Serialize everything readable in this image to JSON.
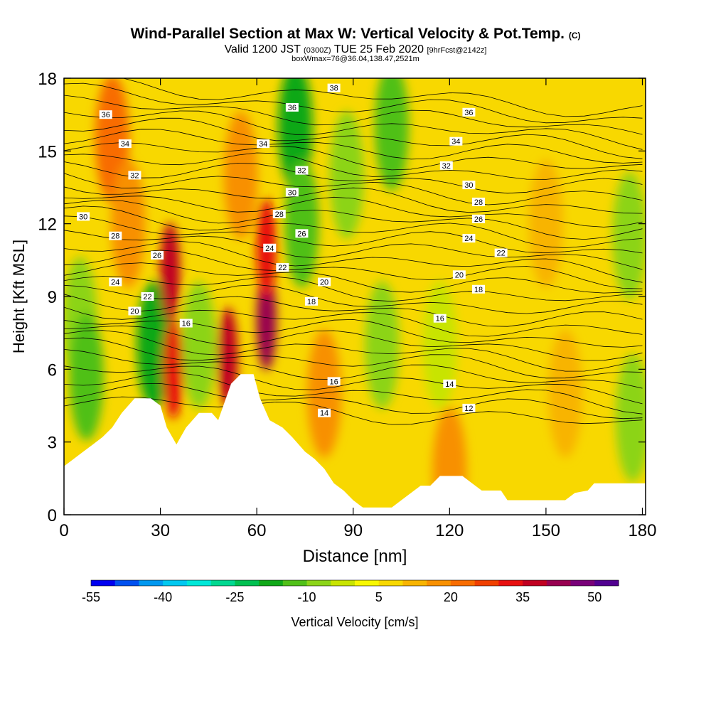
{
  "title": {
    "main": "Wind-Parallel Section at Max W: Vertical Velocity & Pot.Temp.",
    "copyright": "(C)",
    "valid_prefix": "Valid 1200 JST",
    "valid_z": "(0300Z)",
    "valid_date": "TUE 25 Feb 2020",
    "forecast": "[9hrFcst@2142z]",
    "box_info": "boxWmax=76@36.04,138.47,2521m"
  },
  "chart_data": {
    "type": "heatmap",
    "xlabel": "Distance [nm]",
    "ylabel": "Height [Kft MSL]",
    "xlim": [
      0,
      181
    ],
    "ylim": [
      0,
      18
    ],
    "x_ticks": [
      0,
      30,
      60,
      90,
      120,
      150,
      180
    ],
    "y_ticks": [
      0,
      3,
      6,
      9,
      12,
      15,
      18
    ],
    "colorbar": {
      "label": "Vertical Velocity [cm/s]",
      "tick_labels": [
        -55,
        -40,
        -25,
        -10,
        5,
        20,
        35,
        50
      ],
      "colors": [
        "#0000f0",
        "#0050f0",
        "#0098f0",
        "#00c8f0",
        "#00e8d8",
        "#00d890",
        "#00c050",
        "#10a818",
        "#50c018",
        "#8cd418",
        "#c8e400",
        "#f8f800",
        "#f8d800",
        "#f8b400",
        "#f89000",
        "#f86c00",
        "#f04000",
        "#e81010",
        "#c00020",
        "#980050",
        "#780078",
        "#500090"
      ]
    },
    "velocity_features": [
      {
        "x": 5,
        "y": 8,
        "value": -12
      },
      {
        "x": 7,
        "y": 5.7,
        "value": -14
      },
      {
        "x": 15,
        "y": 15.5,
        "value": 18
      },
      {
        "x": 20,
        "y": 12,
        "value": 16
      },
      {
        "x": 28,
        "y": 7,
        "value": -18
      },
      {
        "x": 33,
        "y": 10,
        "value": 34
      },
      {
        "x": 34,
        "y": 6,
        "value": 28
      },
      {
        "x": 42,
        "y": 7,
        "value": -8
      },
      {
        "x": 51,
        "y": 6.5,
        "value": 36
      },
      {
        "x": 55,
        "y": 14,
        "value": 16
      },
      {
        "x": 63,
        "y": 8,
        "value": 40
      },
      {
        "x": 63,
        "y": 11,
        "value": 30
      },
      {
        "x": 72,
        "y": 16,
        "value": -22
      },
      {
        "x": 74,
        "y": 12,
        "value": -14
      },
      {
        "x": 81,
        "y": 5,
        "value": 14
      },
      {
        "x": 88,
        "y": 14,
        "value": -10
      },
      {
        "x": 102,
        "y": 16,
        "value": -14
      },
      {
        "x": 99,
        "y": 7,
        "value": -8
      },
      {
        "x": 117,
        "y": 7,
        "value": -6
      },
      {
        "x": 120,
        "y": 1.8,
        "value": 16
      },
      {
        "x": 156,
        "y": 5,
        "value": 10
      },
      {
        "x": 176,
        "y": 11.5,
        "value": -8
      },
      {
        "x": 177,
        "y": 4,
        "value": -8
      },
      {
        "x": 150,
        "y": 12,
        "value": 8
      }
    ],
    "isentrope_labels": [
      {
        "text": "36",
        "x": 13,
        "y": 16.5
      },
      {
        "text": "34",
        "x": 19,
        "y": 15.3
      },
      {
        "text": "32",
        "x": 22,
        "y": 14
      },
      {
        "text": "30",
        "x": 6,
        "y": 12.3
      },
      {
        "text": "28",
        "x": 16,
        "y": 11.5
      },
      {
        "text": "26",
        "x": 29,
        "y": 10.7
      },
      {
        "text": "24",
        "x": 16,
        "y": 9.6
      },
      {
        "text": "22",
        "x": 26,
        "y": 9
      },
      {
        "text": "20",
        "x": 22,
        "y": 8.4
      },
      {
        "text": "16",
        "x": 38,
        "y": 7.9
      },
      {
        "text": "36",
        "x": 71,
        "y": 16.8
      },
      {
        "text": "34",
        "x": 62,
        "y": 15.3
      },
      {
        "text": "32",
        "x": 74,
        "y": 14.2
      },
      {
        "text": "30",
        "x": 71,
        "y": 13.3
      },
      {
        "text": "28",
        "x": 67,
        "y": 12.4
      },
      {
        "text": "26",
        "x": 74,
        "y": 11.6
      },
      {
        "text": "24",
        "x": 64,
        "y": 11
      },
      {
        "text": "22",
        "x": 68,
        "y": 10.2
      },
      {
        "text": "20",
        "x": 81,
        "y": 9.6
      },
      {
        "text": "18",
        "x": 77,
        "y": 8.8
      },
      {
        "text": "16",
        "x": 84,
        "y": 5.5
      },
      {
        "text": "14",
        "x": 81,
        "y": 4.2
      },
      {
        "text": "38",
        "x": 84,
        "y": 17.6
      },
      {
        "text": "36",
        "x": 126,
        "y": 16.6
      },
      {
        "text": "34",
        "x": 122,
        "y": 15.4
      },
      {
        "text": "32",
        "x": 119,
        "y": 14.4
      },
      {
        "text": "30",
        "x": 126,
        "y": 13.6
      },
      {
        "text": "28",
        "x": 129,
        "y": 12.9
      },
      {
        "text": "26",
        "x": 129,
        "y": 12.2
      },
      {
        "text": "24",
        "x": 126,
        "y": 11.4
      },
      {
        "text": "22",
        "x": 136,
        "y": 10.8
      },
      {
        "text": "20",
        "x": 123,
        "y": 9.9
      },
      {
        "text": "18",
        "x": 129,
        "y": 9.3
      },
      {
        "text": "16",
        "x": 117,
        "y": 8.1
      },
      {
        "text": "14",
        "x": 120,
        "y": 5.4
      },
      {
        "text": "12",
        "x": 126,
        "y": 4.4
      }
    ],
    "terrain": [
      [
        0,
        2
      ],
      [
        3,
        2.3
      ],
      [
        6,
        2.6
      ],
      [
        9,
        2.9
      ],
      [
        12,
        3.2
      ],
      [
        15,
        3.6
      ],
      [
        18,
        4.2
      ],
      [
        22,
        4.8
      ],
      [
        27,
        4.8
      ],
      [
        30,
        4.5
      ],
      [
        32,
        3.6
      ],
      [
        35,
        2.9
      ],
      [
        38,
        3.6
      ],
      [
        42,
        4.2
      ],
      [
        46,
        4.2
      ],
      [
        48,
        3.9
      ],
      [
        52,
        5.4
      ],
      [
        55,
        5.8
      ],
      [
        59,
        5.8
      ],
      [
        61,
        4.8
      ],
      [
        64,
        3.9
      ],
      [
        68,
        3.6
      ],
      [
        71,
        3.2
      ],
      [
        75,
        2.6
      ],
      [
        78,
        2.3
      ],
      [
        81,
        1.9
      ],
      [
        84,
        1.3
      ],
      [
        87,
        1
      ],
      [
        90,
        0.6
      ],
      [
        93,
        0.3
      ],
      [
        96,
        0.3
      ],
      [
        102,
        0.3
      ],
      [
        105,
        0.6
      ],
      [
        108,
        0.9
      ],
      [
        111,
        1.2
      ],
      [
        114,
        1.2
      ],
      [
        117,
        1.6
      ],
      [
        124,
        1.6
      ],
      [
        127,
        1.3
      ],
      [
        130,
        1
      ],
      [
        136,
        1
      ],
      [
        138,
        0.6
      ],
      [
        156,
        0.6
      ],
      [
        159,
        0.9
      ],
      [
        163,
        1
      ],
      [
        165,
        1.3
      ],
      [
        168,
        1.3
      ],
      [
        181,
        1.3
      ]
    ]
  }
}
